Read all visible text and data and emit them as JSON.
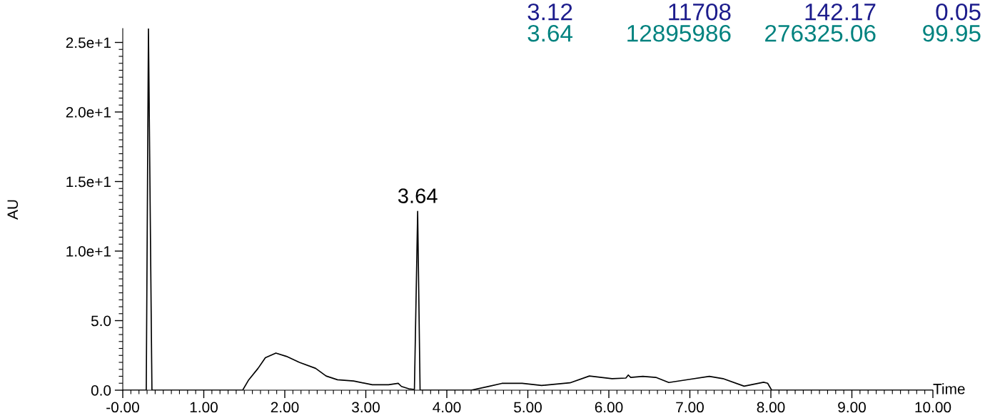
{
  "chart_data": {
    "type": "line",
    "ylabel": "AU",
    "xlabel": "Time",
    "x": [
      0.0,
      0.29,
      0.317,
      0.36,
      1.48,
      1.55,
      1.67,
      1.76,
      1.89,
      2.02,
      2.18,
      2.38,
      2.51,
      2.65,
      2.85,
      3.08,
      3.28,
      3.4,
      3.44,
      3.53,
      3.6,
      3.64,
      3.67,
      4.3,
      4.5,
      4.68,
      4.93,
      5.17,
      5.52,
      5.76,
      6.04,
      6.21,
      6.24,
      6.27,
      6.42,
      6.58,
      6.74,
      7.0,
      7.24,
      7.41,
      7.67,
      7.91,
      7.96,
      8.01,
      10.0
    ],
    "series": [
      {
        "color": "#000000",
        "values": [
          0,
          0,
          26,
          0,
          0,
          0.7,
          1.57,
          2.33,
          2.67,
          2.43,
          2.0,
          1.57,
          1.02,
          0.75,
          0.66,
          0.39,
          0.39,
          0.49,
          0.27,
          0.1,
          0.05,
          12.86,
          0,
          0,
          0.25,
          0.49,
          0.49,
          0.34,
          0.53,
          1.02,
          0.83,
          0.87,
          1.09,
          0.92,
          0.99,
          0.92,
          0.55,
          0.78,
          0.99,
          0.83,
          0.29,
          0.57,
          0.5,
          0,
          0
        ]
      }
    ],
    "xlim": [
      0,
      10
    ],
    "ylim": [
      0,
      26
    ],
    "xticks": [
      {
        "value": 0,
        "label": "-0.00"
      },
      {
        "value": 1,
        "label": "1.00"
      },
      {
        "value": 2,
        "label": "2.00"
      },
      {
        "value": 3,
        "label": "3.00"
      },
      {
        "value": 4,
        "label": "4.00"
      },
      {
        "value": 5,
        "label": "5.00"
      },
      {
        "value": 6,
        "label": "6.00"
      },
      {
        "value": 7,
        "label": "7.00"
      },
      {
        "value": 8,
        "label": "8.00"
      },
      {
        "value": 9,
        "label": "9.00"
      },
      {
        "value": 10,
        "label": "10.00"
      }
    ],
    "yticks": [
      {
        "value": 0,
        "label": "0.0"
      },
      {
        "value": 5,
        "label": "5.0"
      },
      {
        "value": 10,
        "label": "1.0e+1"
      },
      {
        "value": 15,
        "label": "1.5e+1"
      },
      {
        "value": 20,
        "label": "2.0e+1"
      },
      {
        "value": 25,
        "label": "2.5e+1"
      }
    ],
    "annotations": [
      {
        "text": "3.64",
        "x": 3.64,
        "y": 12.86
      },
      "3.12  11708  142.17  0.05",
      "3.64  12895986  276325.06  99.95"
    ],
    "grid": false,
    "legend": false,
    "marker": "none",
    "line_style": "solid"
  }
}
